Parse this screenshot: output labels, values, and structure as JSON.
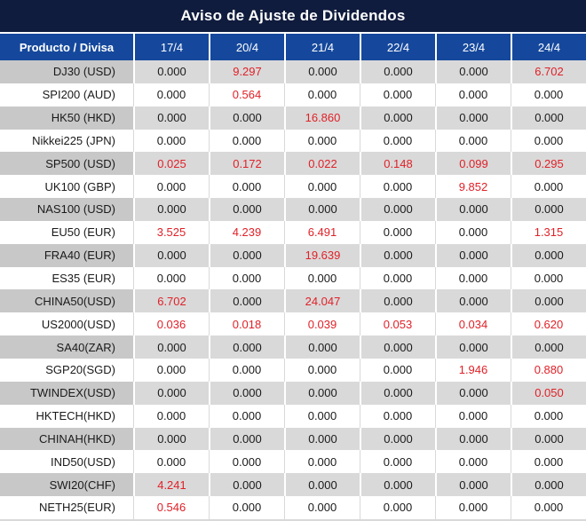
{
  "page": {
    "title": "Aviso de Ajuste de Dividendos"
  },
  "colors": {
    "title_bg": "#101c3d",
    "header_bg": "#15489c",
    "header_text": "#ffffff",
    "row_bg": "#ffffff",
    "row_alt_bg": "#d9d9d9",
    "row_alt_label_bg": "#c8c8c8",
    "value_black": "#1a1a1a",
    "value_red": "#e02128"
  },
  "table": {
    "product_header": "Producto / Divisa",
    "date_headers": [
      "17/4",
      "20/4",
      "21/4",
      "22/4",
      "23/4",
      "24/4"
    ],
    "rows": [
      {
        "product": "DJ30 (USD)",
        "values": [
          "0.000",
          "9.297",
          "0.000",
          "0.000",
          "0.000",
          "6.702"
        ],
        "red_cols": [
          1,
          5
        ]
      },
      {
        "product": "SPI200 (AUD)",
        "values": [
          "0.000",
          "0.564",
          "0.000",
          "0.000",
          "0.000",
          "0.000"
        ],
        "red_cols": [
          1
        ]
      },
      {
        "product": "HK50 (HKD)",
        "values": [
          "0.000",
          "0.000",
          "16.860",
          "0.000",
          "0.000",
          "0.000"
        ],
        "red_cols": [
          2
        ]
      },
      {
        "product": "Nikkei225 (JPN)",
        "values": [
          "0.000",
          "0.000",
          "0.000",
          "0.000",
          "0.000",
          "0.000"
        ],
        "red_cols": []
      },
      {
        "product": "SP500 (USD)",
        "values": [
          "0.025",
          "0.172",
          "0.022",
          "0.148",
          "0.099",
          "0.295"
        ],
        "red_cols": [
          0,
          1,
          2,
          3,
          4,
          5
        ]
      },
      {
        "product": "UK100 (GBP)",
        "values": [
          "0.000",
          "0.000",
          "0.000",
          "0.000",
          "9.852",
          "0.000"
        ],
        "red_cols": [
          4
        ]
      },
      {
        "product": "NAS100 (USD)",
        "values": [
          "0.000",
          "0.000",
          "0.000",
          "0.000",
          "0.000",
          "0.000"
        ],
        "red_cols": []
      },
      {
        "product": "EU50 (EUR)",
        "values": [
          "3.525",
          "4.239",
          "6.491",
          "0.000",
          "0.000",
          "1.315"
        ],
        "red_cols": [
          0,
          1,
          2,
          5
        ]
      },
      {
        "product": "FRA40 (EUR)",
        "values": [
          "0.000",
          "0.000",
          "19.639",
          "0.000",
          "0.000",
          "0.000"
        ],
        "red_cols": [
          2
        ]
      },
      {
        "product": "ES35 (EUR)",
        "values": [
          "0.000",
          "0.000",
          "0.000",
          "0.000",
          "0.000",
          "0.000"
        ],
        "red_cols": []
      },
      {
        "product": "CHINA50(USD)",
        "values": [
          "6.702",
          "0.000",
          "24.047",
          "0.000",
          "0.000",
          "0.000"
        ],
        "red_cols": [
          0,
          2
        ]
      },
      {
        "product": "US2000(USD)",
        "values": [
          "0.036",
          "0.018",
          "0.039",
          "0.053",
          "0.034",
          "0.620"
        ],
        "red_cols": [
          0,
          1,
          2,
          3,
          4,
          5
        ]
      },
      {
        "product": "SA40(ZAR)",
        "values": [
          "0.000",
          "0.000",
          "0.000",
          "0.000",
          "0.000",
          "0.000"
        ],
        "red_cols": []
      },
      {
        "product": "SGP20(SGD)",
        "values": [
          "0.000",
          "0.000",
          "0.000",
          "0.000",
          "1.946",
          "0.880"
        ],
        "red_cols": [
          4,
          5
        ]
      },
      {
        "product": "TWINDEX(USD)",
        "values": [
          "0.000",
          "0.000",
          "0.000",
          "0.000",
          "0.000",
          "0.050"
        ],
        "red_cols": [
          5
        ]
      },
      {
        "product": "HKTECH(HKD)",
        "values": [
          "0.000",
          "0.000",
          "0.000",
          "0.000",
          "0.000",
          "0.000"
        ],
        "red_cols": []
      },
      {
        "product": "CHINAH(HKD)",
        "values": [
          "0.000",
          "0.000",
          "0.000",
          "0.000",
          "0.000",
          "0.000"
        ],
        "red_cols": []
      },
      {
        "product": "IND50(USD)",
        "values": [
          "0.000",
          "0.000",
          "0.000",
          "0.000",
          "0.000",
          "0.000"
        ],
        "red_cols": []
      },
      {
        "product": "SWI20(CHF)",
        "values": [
          "4.241",
          "0.000",
          "0.000",
          "0.000",
          "0.000",
          "0.000"
        ],
        "red_cols": [
          0
        ]
      },
      {
        "product": "NETH25(EUR)",
        "values": [
          "0.546",
          "0.000",
          "0.000",
          "0.000",
          "0.000",
          "0.000"
        ],
        "red_cols": [
          0
        ]
      }
    ]
  }
}
